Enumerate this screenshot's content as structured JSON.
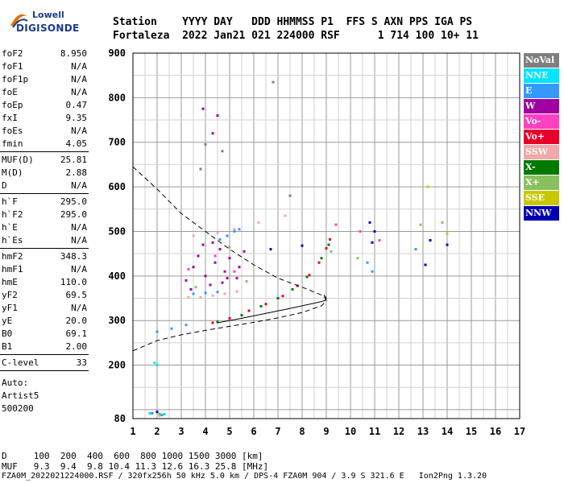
{
  "logo": {
    "line1": "Lowell",
    "line2": "DIGISONDE"
  },
  "header": {
    "row1": "Station    YYYY DAY   DDD HHMMSS P1  FFS S AXN PPS IGA PS",
    "row2": "Fortaleza  2022 Jan21 021 224000 RSF      1 714 100 10+ 11"
  },
  "params": {
    "group1": [
      {
        "k": "foF2",
        "v": "8.950"
      },
      {
        "k": "foF1",
        "v": "N/A"
      },
      {
        "k": "foF1p",
        "v": "N/A"
      },
      {
        "k": "foE",
        "v": "N/A"
      },
      {
        "k": "foEp",
        "v": "0.47"
      },
      {
        "k": "fxI",
        "v": "9.35"
      },
      {
        "k": "foEs",
        "v": "N/A"
      },
      {
        "k": "fmin",
        "v": "4.05"
      }
    ],
    "group2": [
      {
        "k": "MUF(D)",
        "v": "25.81"
      },
      {
        "k": "M(D)",
        "v": "2.88"
      },
      {
        "k": "D",
        "v": "N/A"
      }
    ],
    "group3": [
      {
        "k": "h`F",
        "v": "295.0"
      },
      {
        "k": "h`F2",
        "v": "295.0"
      },
      {
        "k": "h`E",
        "v": "N/A"
      },
      {
        "k": "h`Es",
        "v": "N/A"
      }
    ],
    "group4": [
      {
        "k": "hmF2",
        "v": "348.3"
      },
      {
        "k": "hmF1",
        "v": "N/A"
      },
      {
        "k": "hmE",
        "v": "110.0"
      },
      {
        "k": "yF2",
        "v": "69.5"
      },
      {
        "k": "yF1",
        "v": "N/A"
      },
      {
        "k": "yE",
        "v": "20.0"
      },
      {
        "k": "B0",
        "v": "69.1"
      },
      {
        "k": "B1",
        "v": "2.00"
      }
    ],
    "group5": [
      {
        "k": "C-level",
        "v": "33"
      }
    ],
    "auto": [
      "Auto:",
      "Artist5",
      "500200"
    ]
  },
  "legend": [
    {
      "label": "NoVal",
      "color": "#7f7f7f"
    },
    {
      "label": "NNE",
      "color": "#00e5ff"
    },
    {
      "label": "E",
      "color": "#3399ff"
    },
    {
      "label": "W",
      "color": "#a000a0"
    },
    {
      "label": "Vo-",
      "color": "#ff40c0"
    },
    {
      "label": "Vo+",
      "color": "#e8002a"
    },
    {
      "label": "SSW",
      "color": "#f0a8a8"
    },
    {
      "label": "X-",
      "color": "#007a00"
    },
    {
      "label": "X+",
      "color": "#88c060"
    },
    {
      "label": "SSE",
      "color": "#c8c800"
    },
    {
      "label": "NNW",
      "color": "#0000b0"
    }
  ],
  "footer": {
    "row1": "D     100  200  400  600  800 1000 1500 3000 [km]",
    "row2": "MUF   9.3  9.4  9.8 10.4 11.3 12.6 16.3 25.8 [MHz]",
    "row3": "FZA0M_2022021224000.RSF / 320fx256h 50 kHz 5.0 km / DPS-4 FZA0M 904 / 3.9 S 321.6 E   Ion2Png 1.3.20"
  },
  "chart_data": {
    "type": "scatter",
    "xlim": [
      1,
      17
    ],
    "ylim": [
      80,
      900
    ],
    "x_ticks": [
      1,
      2,
      3,
      4,
      5,
      6,
      7,
      8,
      9,
      10,
      11,
      12,
      13,
      14,
      15,
      16,
      17
    ],
    "y_ticks": [
      80,
      200,
      300,
      400,
      500,
      600,
      700,
      800,
      900
    ],
    "grid": true,
    "series": [
      {
        "color": "#e8002a",
        "points": [
          [
            4.3,
            295
          ],
          [
            5.0,
            305
          ],
          [
            5.8,
            322
          ],
          [
            6.5,
            337
          ],
          [
            7.2,
            355
          ],
          [
            7.8,
            378
          ],
          [
            8.3,
            402
          ],
          [
            8.7,
            430
          ],
          [
            9.0,
            462
          ],
          [
            9.15,
            482
          ]
        ]
      },
      {
        "color": "#007a00",
        "points": [
          [
            4.5,
            297
          ],
          [
            5.5,
            312
          ],
          [
            6.3,
            332
          ],
          [
            7.0,
            350
          ],
          [
            7.6,
            370
          ],
          [
            8.2,
            398
          ],
          [
            8.8,
            440
          ],
          [
            9.1,
            470
          ]
        ]
      },
      {
        "color": "#f0a8a8",
        "points": [
          [
            3.3,
            352
          ],
          [
            3.8,
            352
          ],
          [
            4.3,
            356
          ],
          [
            4.8,
            360
          ],
          [
            5.3,
            365
          ],
          [
            3.5,
            490
          ],
          [
            4.5,
            497
          ],
          [
            5.2,
            505
          ],
          [
            6.2,
            520
          ],
          [
            7.3,
            535
          ]
        ]
      },
      {
        "color": "#a000a0",
        "points": [
          [
            3.2,
            390
          ],
          [
            3.5,
            420
          ],
          [
            3.7,
            445
          ],
          [
            4.0,
            400
          ],
          [
            4.2,
            380
          ],
          [
            4.4,
            430
          ],
          [
            4.6,
            460
          ],
          [
            4.8,
            410
          ],
          [
            5.0,
            440
          ],
          [
            5.3,
            395
          ],
          [
            5.6,
            455
          ],
          [
            3.9,
            470
          ],
          [
            4.3,
            475
          ],
          [
            4.9,
            395
          ],
          [
            5.4,
            420
          ],
          [
            3.4,
            370
          ],
          [
            4.7,
            385
          ],
          [
            3.9,
            775
          ],
          [
            4.5,
            760
          ],
          [
            4.3,
            720
          ]
        ]
      },
      {
        "color": "#3399ff",
        "points": [
          [
            3.5,
            360
          ],
          [
            4.0,
            362
          ],
          [
            4.5,
            364
          ],
          [
            4.6,
            482
          ],
          [
            4.9,
            490
          ],
          [
            5.2,
            500
          ],
          [
            5.4,
            505
          ],
          [
            2.0,
            275
          ],
          [
            2.6,
            282
          ],
          [
            3.2,
            290
          ],
          [
            1.8,
            92
          ],
          [
            2.1,
            90
          ],
          [
            2.2,
            88
          ],
          [
            10.9,
            410
          ],
          [
            10.7,
            430
          ],
          [
            12.7,
            460
          ]
        ]
      },
      {
        "color": "#0000b0",
        "points": [
          [
            10.8,
            520
          ],
          [
            10.9,
            475
          ],
          [
            11.0,
            500
          ],
          [
            13.1,
            425
          ],
          [
            13.3,
            480
          ],
          [
            14.0,
            470
          ],
          [
            2.0,
            95
          ],
          [
            6.7,
            460
          ],
          [
            8.0,
            468
          ]
        ]
      },
      {
        "color": "#88c060",
        "points": [
          [
            3.6,
            375
          ],
          [
            5.0,
            465
          ],
          [
            5.7,
            388
          ],
          [
            9.2,
            455
          ],
          [
            10.3,
            440
          ],
          [
            12.9,
            515
          ],
          [
            13.8,
            520
          ]
        ]
      },
      {
        "color": "#ff40c0",
        "points": [
          [
            3.3,
            415
          ],
          [
            4.4,
            445
          ],
          [
            5.2,
            410
          ],
          [
            9.4,
            515
          ],
          [
            10.4,
            500
          ],
          [
            11.2,
            480
          ]
        ]
      },
      {
        "color": "#00e5ff",
        "points": [
          [
            1.9,
            205
          ],
          [
            2.0,
            200
          ],
          [
            1.7,
            92
          ],
          [
            2.3,
            90
          ]
        ]
      },
      {
        "color": "#7f7f7f",
        "points": [
          [
            3.8,
            640
          ],
          [
            4.0,
            695
          ],
          [
            6.8,
            835
          ],
          [
            7.5,
            580
          ],
          [
            4.7,
            680
          ]
        ]
      },
      {
        "color": "#c8c800",
        "points": [
          [
            13.2,
            600
          ],
          [
            14.0,
            495
          ],
          [
            2.1,
            87
          ]
        ]
      }
    ],
    "lines": [
      {
        "style": "dashed",
        "points": [
          [
            1.0,
            645
          ],
          [
            2.0,
            595
          ],
          [
            3.0,
            540
          ],
          [
            4.0,
            500
          ],
          [
            5.0,
            460
          ],
          [
            6.0,
            425
          ],
          [
            7.0,
            395
          ],
          [
            8.0,
            375
          ],
          [
            8.9,
            355
          ],
          [
            9.0,
            345
          ],
          [
            8.8,
            333
          ],
          [
            8.0,
            318
          ],
          [
            7.0,
            306
          ],
          [
            6.0,
            296
          ],
          [
            5.0,
            287
          ],
          [
            4.0,
            278
          ],
          [
            3.0,
            268
          ],
          [
            2.0,
            255
          ],
          [
            1.0,
            232
          ]
        ]
      },
      {
        "style": "solid",
        "points": [
          [
            4.5,
            295
          ],
          [
            5.5,
            305
          ],
          [
            6.5,
            316
          ],
          [
            7.3,
            325
          ],
          [
            8.0,
            333
          ],
          [
            8.6,
            340
          ],
          [
            8.95,
            345
          ],
          [
            9.0,
            350
          ],
          [
            8.9,
            358
          ]
        ]
      }
    ]
  }
}
